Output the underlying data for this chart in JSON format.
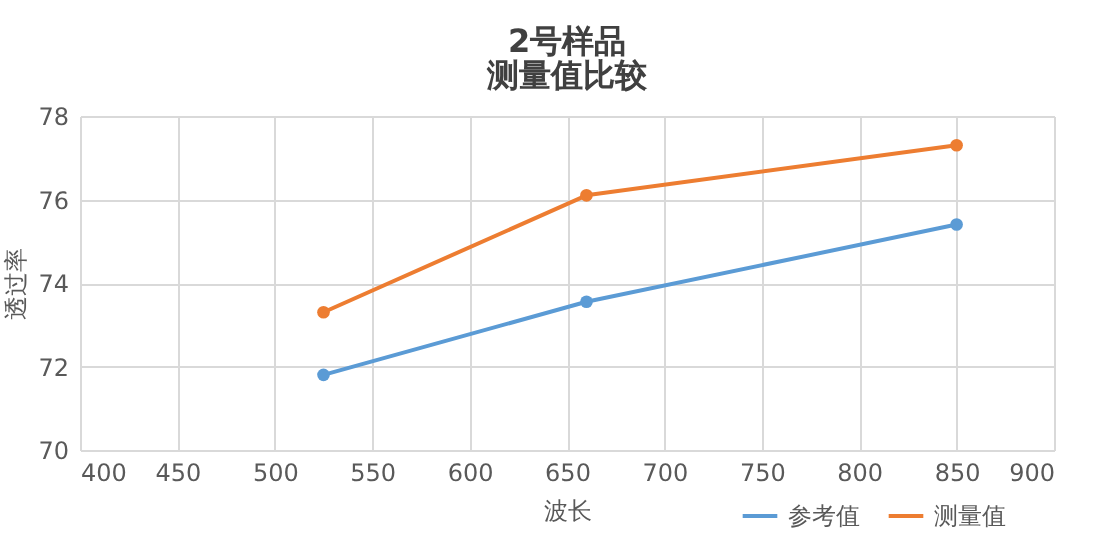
{
  "chart_data": {
    "type": "line",
    "title": "2号样品",
    "subtitle": "测量值比较",
    "xlabel": "波长",
    "ylabel": "透过率",
    "x": [
      525,
      660,
      850
    ],
    "series": [
      {
        "name": "参考值",
        "color": "#5b9bd5",
        "values": [
          71.8,
          73.55,
          75.4
        ]
      },
      {
        "name": "测量值",
        "color": "#ed7d31",
        "values": [
          73.3,
          76.1,
          77.3
        ]
      }
    ],
    "xlim": [
      400,
      900
    ],
    "xticks": [
      400,
      450,
      500,
      550,
      600,
      650,
      700,
      750,
      800,
      850,
      900
    ],
    "ylim": [
      70,
      78
    ],
    "yticks": [
      70,
      72,
      74,
      76,
      78
    ],
    "grid": true,
    "legend": "bottom right",
    "marker": "circle",
    "line_style": "solid"
  }
}
